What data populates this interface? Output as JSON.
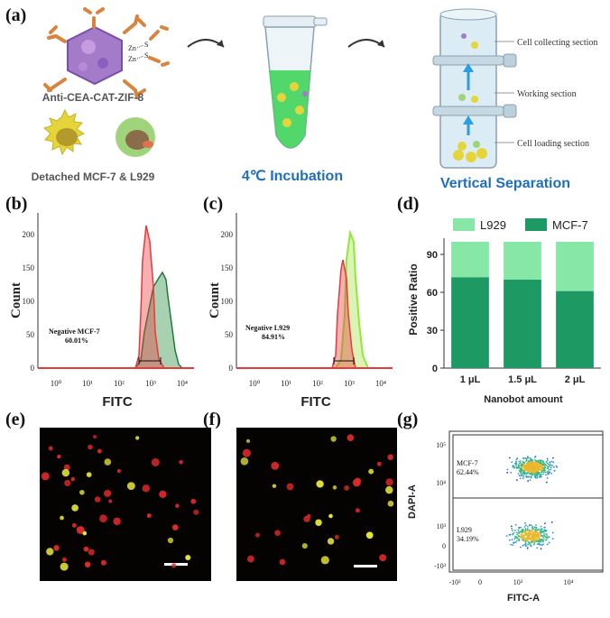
{
  "panel_labels": {
    "a": "(a)",
    "b": "(b)",
    "c": "(c)",
    "d": "(d)",
    "e": "(e)",
    "f": "(f)",
    "g": "(g)"
  },
  "panel_a": {
    "nanobot_label": "Anti-CEA-CAT-ZIF-8",
    "cells_label": "Detached MCF-7 & L929",
    "incubation_label": "4℃ Incubation",
    "separation_label": "Vertical Separation",
    "section_collecting": "Cell collecting section",
    "section_working": "Working section",
    "section_loading": "Cell loading section",
    "zn_label_1": "Zn",
    "zn_label_2": "Zn",
    "s_label_1": "S",
    "s_label_2": "S"
  },
  "panel_b": {
    "ylabel": "Count",
    "xlabel": "FITC",
    "annotation_line1": "Negative MCF-7",
    "annotation_line2": "60.01%",
    "yticks": [
      "0",
      "50",
      "100",
      "150",
      "200"
    ],
    "xticks": [
      "10⁰",
      "10¹",
      "10²",
      "10³",
      "10⁴"
    ]
  },
  "panel_c": {
    "ylabel": "Count",
    "xlabel": "FITC",
    "annotation_line1": "Negative L929",
    "annotation_line2": "84.91%",
    "yticks": [
      "0",
      "50",
      "100",
      "150",
      "200"
    ],
    "xticks": [
      "10⁰",
      "10¹",
      "10²",
      "10³",
      "10⁴"
    ]
  },
  "panel_g": {
    "ylabel": "DAPI-A",
    "xlabel": "FITC-A",
    "gate_top_name": "MCF-7",
    "gate_top_pct": "62.44%",
    "gate_bottom_name": "L929",
    "gate_bottom_pct": "34.19%",
    "yticks": [
      "10⁵",
      "10⁴",
      "10³",
      "0",
      "-10³"
    ],
    "xticks": [
      "-10³",
      "0",
      "10³",
      "10⁴"
    ]
  },
  "colors": {
    "mcf7_dark_green": "#1d9a63",
    "l929_light_green": "#86e7a6",
    "histogram_red": "#e8393b",
    "histogram_dark_green": "#1f7a3a",
    "histogram_lime": "#8fe83a",
    "caption_blue": "#1f6fbf"
  },
  "chart_data": {
    "type": "bar",
    "stacked": true,
    "categories": [
      "1 μL",
      "1.5 μL",
      "2 μL"
    ],
    "xlabel": "Nanobot amount",
    "ylabel": "Positive Ratio",
    "ylim": [
      0,
      100
    ],
    "yticks": [
      "0",
      "30",
      "60",
      "90"
    ],
    "legend_position": "top",
    "series": [
      {
        "name": "MCF-7",
        "values": [
          72,
          70,
          61
        ],
        "color": "#1d9a63"
      },
      {
        "name": "L929",
        "values": [
          28,
          30,
          39
        ],
        "color": "#86e7a6"
      }
    ]
  }
}
